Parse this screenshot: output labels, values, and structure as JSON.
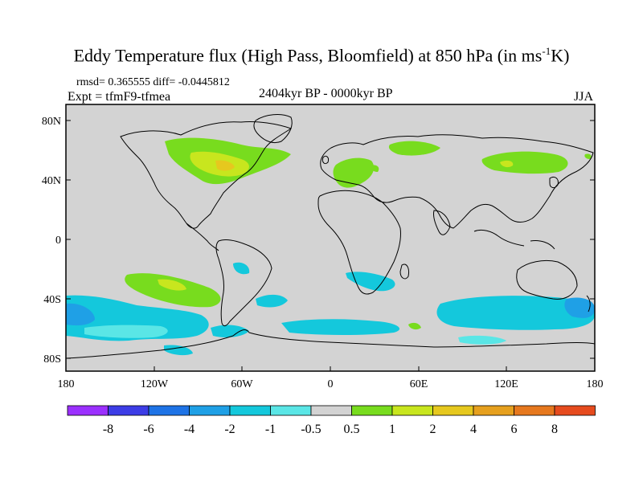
{
  "title_main": "Eddy Temperature flux (High Pass, Bloomfield) at 850 hPa (in ms",
  "title_sup": "-1",
  "title_end": "K)",
  "stats": "rmsd= 0.365555  diff= -0.0445812",
  "expt": "Expt = tfmF9-tfmea",
  "period": "2404kyr BP - 0000kyr BP",
  "season": "JJA",
  "lat_labels": [
    "80N",
    "40N",
    "0",
    "40S",
    "80S"
  ],
  "lon_labels": [
    "180",
    "120W",
    "60W",
    "0",
    "60E",
    "120E",
    "180"
  ],
  "legend": {
    "colors": [
      "#9b30ff",
      "#3d3de6",
      "#1e73e6",
      "#1fa0e6",
      "#14c8dc",
      "#5ae6e6",
      "#d3d3d3",
      "#78dc1e",
      "#c8e61e",
      "#e6c81e",
      "#e6a01e",
      "#e6781e",
      "#e64b1e"
    ],
    "labels": [
      "-8",
      "-6",
      "-4",
      "-2",
      "-1",
      "-0.5",
      "0.5",
      "1",
      "2",
      "4",
      "6",
      "8"
    ]
  },
  "colors": {
    "ocean": "#d3d3d3"
  }
}
